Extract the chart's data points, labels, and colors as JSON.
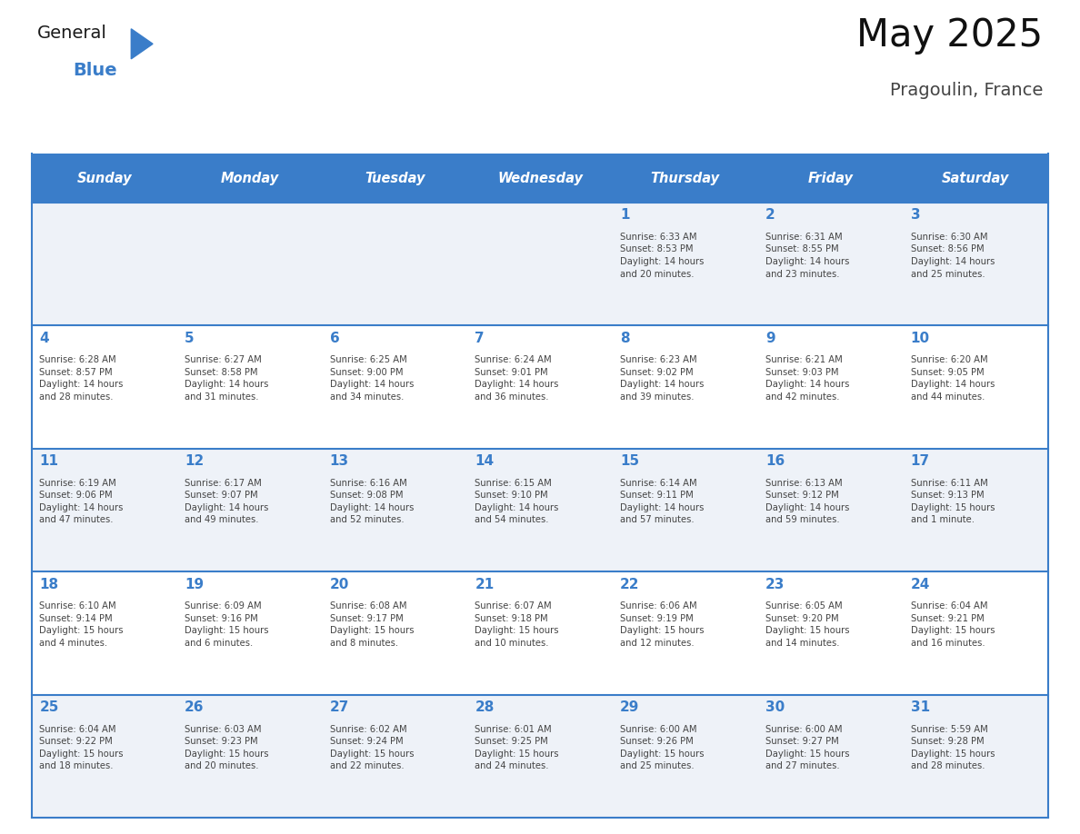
{
  "title": "May 2025",
  "subtitle": "Pragoulin, France",
  "days_of_week": [
    "Sunday",
    "Monday",
    "Tuesday",
    "Wednesday",
    "Thursday",
    "Friday",
    "Saturday"
  ],
  "header_bg": "#3A7DC9",
  "header_text": "#FFFFFF",
  "cell_bg_odd": "#EEF2F8",
  "cell_bg_even": "#FFFFFF",
  "divider_color": "#3A7DC9",
  "day_number_color": "#3A7DC9",
  "cell_text_color": "#444444",
  "logo_general_color": "#1a1a1a",
  "logo_blue_color": "#3A7DC9",
  "weeks": [
    [
      {
        "day": null,
        "text": ""
      },
      {
        "day": null,
        "text": ""
      },
      {
        "day": null,
        "text": ""
      },
      {
        "day": null,
        "text": ""
      },
      {
        "day": 1,
        "text": "Sunrise: 6:33 AM\nSunset: 8:53 PM\nDaylight: 14 hours\nand 20 minutes."
      },
      {
        "day": 2,
        "text": "Sunrise: 6:31 AM\nSunset: 8:55 PM\nDaylight: 14 hours\nand 23 minutes."
      },
      {
        "day": 3,
        "text": "Sunrise: 6:30 AM\nSunset: 8:56 PM\nDaylight: 14 hours\nand 25 minutes."
      }
    ],
    [
      {
        "day": 4,
        "text": "Sunrise: 6:28 AM\nSunset: 8:57 PM\nDaylight: 14 hours\nand 28 minutes."
      },
      {
        "day": 5,
        "text": "Sunrise: 6:27 AM\nSunset: 8:58 PM\nDaylight: 14 hours\nand 31 minutes."
      },
      {
        "day": 6,
        "text": "Sunrise: 6:25 AM\nSunset: 9:00 PM\nDaylight: 14 hours\nand 34 minutes."
      },
      {
        "day": 7,
        "text": "Sunrise: 6:24 AM\nSunset: 9:01 PM\nDaylight: 14 hours\nand 36 minutes."
      },
      {
        "day": 8,
        "text": "Sunrise: 6:23 AM\nSunset: 9:02 PM\nDaylight: 14 hours\nand 39 minutes."
      },
      {
        "day": 9,
        "text": "Sunrise: 6:21 AM\nSunset: 9:03 PM\nDaylight: 14 hours\nand 42 minutes."
      },
      {
        "day": 10,
        "text": "Sunrise: 6:20 AM\nSunset: 9:05 PM\nDaylight: 14 hours\nand 44 minutes."
      }
    ],
    [
      {
        "day": 11,
        "text": "Sunrise: 6:19 AM\nSunset: 9:06 PM\nDaylight: 14 hours\nand 47 minutes."
      },
      {
        "day": 12,
        "text": "Sunrise: 6:17 AM\nSunset: 9:07 PM\nDaylight: 14 hours\nand 49 minutes."
      },
      {
        "day": 13,
        "text": "Sunrise: 6:16 AM\nSunset: 9:08 PM\nDaylight: 14 hours\nand 52 minutes."
      },
      {
        "day": 14,
        "text": "Sunrise: 6:15 AM\nSunset: 9:10 PM\nDaylight: 14 hours\nand 54 minutes."
      },
      {
        "day": 15,
        "text": "Sunrise: 6:14 AM\nSunset: 9:11 PM\nDaylight: 14 hours\nand 57 minutes."
      },
      {
        "day": 16,
        "text": "Sunrise: 6:13 AM\nSunset: 9:12 PM\nDaylight: 14 hours\nand 59 minutes."
      },
      {
        "day": 17,
        "text": "Sunrise: 6:11 AM\nSunset: 9:13 PM\nDaylight: 15 hours\nand 1 minute."
      }
    ],
    [
      {
        "day": 18,
        "text": "Sunrise: 6:10 AM\nSunset: 9:14 PM\nDaylight: 15 hours\nand 4 minutes."
      },
      {
        "day": 19,
        "text": "Sunrise: 6:09 AM\nSunset: 9:16 PM\nDaylight: 15 hours\nand 6 minutes."
      },
      {
        "day": 20,
        "text": "Sunrise: 6:08 AM\nSunset: 9:17 PM\nDaylight: 15 hours\nand 8 minutes."
      },
      {
        "day": 21,
        "text": "Sunrise: 6:07 AM\nSunset: 9:18 PM\nDaylight: 15 hours\nand 10 minutes."
      },
      {
        "day": 22,
        "text": "Sunrise: 6:06 AM\nSunset: 9:19 PM\nDaylight: 15 hours\nand 12 minutes."
      },
      {
        "day": 23,
        "text": "Sunrise: 6:05 AM\nSunset: 9:20 PM\nDaylight: 15 hours\nand 14 minutes."
      },
      {
        "day": 24,
        "text": "Sunrise: 6:04 AM\nSunset: 9:21 PM\nDaylight: 15 hours\nand 16 minutes."
      }
    ],
    [
      {
        "day": 25,
        "text": "Sunrise: 6:04 AM\nSunset: 9:22 PM\nDaylight: 15 hours\nand 18 minutes."
      },
      {
        "day": 26,
        "text": "Sunrise: 6:03 AM\nSunset: 9:23 PM\nDaylight: 15 hours\nand 20 minutes."
      },
      {
        "day": 27,
        "text": "Sunrise: 6:02 AM\nSunset: 9:24 PM\nDaylight: 15 hours\nand 22 minutes."
      },
      {
        "day": 28,
        "text": "Sunrise: 6:01 AM\nSunset: 9:25 PM\nDaylight: 15 hours\nand 24 minutes."
      },
      {
        "day": 29,
        "text": "Sunrise: 6:00 AM\nSunset: 9:26 PM\nDaylight: 15 hours\nand 25 minutes."
      },
      {
        "day": 30,
        "text": "Sunrise: 6:00 AM\nSunset: 9:27 PM\nDaylight: 15 hours\nand 27 minutes."
      },
      {
        "day": 31,
        "text": "Sunrise: 5:59 AM\nSunset: 9:28 PM\nDaylight: 15 hours\nand 28 minutes."
      }
    ]
  ]
}
